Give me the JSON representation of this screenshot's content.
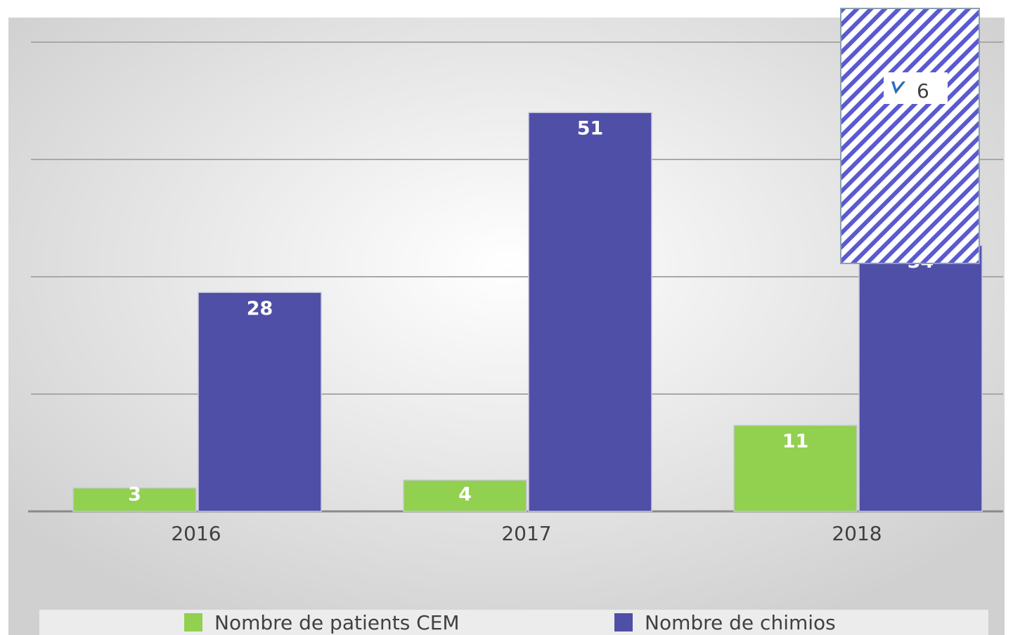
{
  "chart_data": {
    "type": "bar",
    "categories": [
      "2016",
      "2017",
      "2018"
    ],
    "series": [
      {
        "name": "Nombre de patients CEM",
        "color": "#92d050",
        "values": [
          3,
          4,
          11
        ]
      },
      {
        "name": "Nombre de chimios",
        "color": "#4f4fa8",
        "values": [
          28,
          51,
          34
        ]
      }
    ],
    "ylim": [
      0,
      60
    ],
    "yticks": [
      0,
      15,
      30,
      45,
      60
    ],
    "grid": true,
    "legend": "bottom",
    "overlay": {
      "label": "6"
    }
  }
}
